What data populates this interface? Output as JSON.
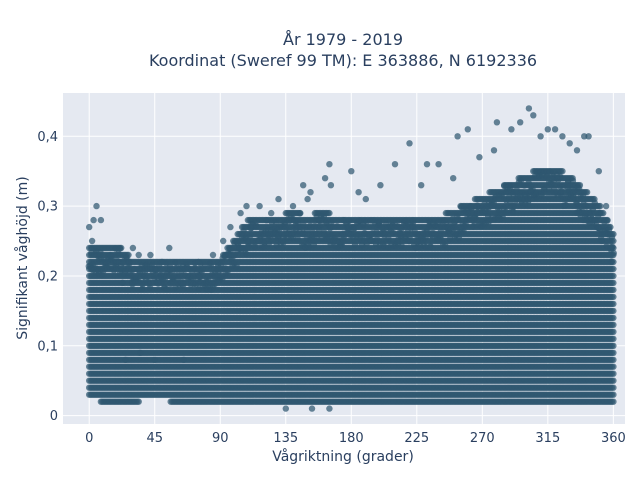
{
  "chart_data": {
    "type": "scatter",
    "title_line1": "År 1979 - 2019",
    "title_line2": "Koordinat (Sweref 99 TM): E 363886, N 6192336",
    "xlabel": "Vågriktning (grader)",
    "ylabel": "Signifikant våghöjd (m)",
    "xlim": [
      -18,
      368
    ],
    "ylim": [
      -0.012,
      0.462
    ],
    "xticks": [
      0,
      45,
      90,
      135,
      180,
      225,
      270,
      315,
      360
    ],
    "xtick_labels": [
      "0",
      "45",
      "90",
      "135",
      "180",
      "225",
      "270",
      "315",
      "360"
    ],
    "yticks": [
      0,
      0.1,
      0.2,
      0.3,
      0.4
    ],
    "ytick_labels": [
      "0",
      "0,1",
      "0,2",
      "0,3",
      "0,4"
    ],
    "grid": true,
    "marker_color": "#2f5770",
    "background_color": "#e5e9f1",
    "envelope": {
      "x": [
        -1,
        5,
        10,
        20,
        30,
        40,
        50,
        60,
        70,
        80,
        90,
        100,
        110,
        120,
        130,
        140,
        150,
        160,
        170,
        180,
        190,
        200,
        210,
        220,
        230,
        240,
        250,
        260,
        270,
        280,
        290,
        300,
        310,
        320,
        330,
        340,
        350,
        360
      ],
      "ymax": [
        0.24,
        0.24,
        0.24,
        0.24,
        0.22,
        0.22,
        0.22,
        0.22,
        0.22,
        0.22,
        0.22,
        0.25,
        0.28,
        0.28,
        0.28,
        0.29,
        0.28,
        0.29,
        0.28,
        0.28,
        0.28,
        0.28,
        0.28,
        0.28,
        0.28,
        0.28,
        0.29,
        0.3,
        0.31,
        0.32,
        0.33,
        0.34,
        0.35,
        0.35,
        0.34,
        0.32,
        0.3,
        0.26
      ],
      "ymin": [
        0.03,
        0.03,
        0.02,
        0.02,
        0.02,
        0.03,
        0.03,
        0.02,
        0.02,
        0.02,
        0.02,
        0.02,
        0.02,
        0.02,
        0.02,
        0.02,
        0.02,
        0.02,
        0.02,
        0.02,
        0.02,
        0.02,
        0.02,
        0.02,
        0.02,
        0.02,
        0.02,
        0.02,
        0.02,
        0.02,
        0.02,
        0.02,
        0.02,
        0.02,
        0.02,
        0.02,
        0.02,
        0.02
      ]
    },
    "outliers": [
      {
        "x": 0,
        "y": 0.27
      },
      {
        "x": 2,
        "y": 0.25
      },
      {
        "x": 3,
        "y": 0.28
      },
      {
        "x": 5,
        "y": 0.3
      },
      {
        "x": 8,
        "y": 0.28
      },
      {
        "x": 30,
        "y": 0.24
      },
      {
        "x": 34,
        "y": 0.23
      },
      {
        "x": 42,
        "y": 0.23
      },
      {
        "x": 50,
        "y": 0.22
      },
      {
        "x": 55,
        "y": 0.24
      },
      {
        "x": 75,
        "y": 0.22
      },
      {
        "x": 85,
        "y": 0.23
      },
      {
        "x": 92,
        "y": 0.25
      },
      {
        "x": 97,
        "y": 0.27
      },
      {
        "x": 104,
        "y": 0.29
      },
      {
        "x": 108,
        "y": 0.3
      },
      {
        "x": 117,
        "y": 0.3
      },
      {
        "x": 125,
        "y": 0.29
      },
      {
        "x": 130,
        "y": 0.31
      },
      {
        "x": 140,
        "y": 0.3
      },
      {
        "x": 147,
        "y": 0.33
      },
      {
        "x": 150,
        "y": 0.31
      },
      {
        "x": 152,
        "y": 0.32
      },
      {
        "x": 162,
        "y": 0.34
      },
      {
        "x": 165,
        "y": 0.36
      },
      {
        "x": 166,
        "y": 0.33
      },
      {
        "x": 180,
        "y": 0.35
      },
      {
        "x": 185,
        "y": 0.32
      },
      {
        "x": 190,
        "y": 0.31
      },
      {
        "x": 200,
        "y": 0.33
      },
      {
        "x": 210,
        "y": 0.36
      },
      {
        "x": 220,
        "y": 0.39
      },
      {
        "x": 228,
        "y": 0.33
      },
      {
        "x": 232,
        "y": 0.36
      },
      {
        "x": 240,
        "y": 0.36
      },
      {
        "x": 250,
        "y": 0.34
      },
      {
        "x": 253,
        "y": 0.4
      },
      {
        "x": 260,
        "y": 0.41
      },
      {
        "x": 268,
        "y": 0.37
      },
      {
        "x": 278,
        "y": 0.38
      },
      {
        "x": 280,
        "y": 0.42
      },
      {
        "x": 290,
        "y": 0.41
      },
      {
        "x": 296,
        "y": 0.42
      },
      {
        "x": 302,
        "y": 0.44
      },
      {
        "x": 305,
        "y": 0.43
      },
      {
        "x": 310,
        "y": 0.4
      },
      {
        "x": 315,
        "y": 0.41
      },
      {
        "x": 320,
        "y": 0.41
      },
      {
        "x": 325,
        "y": 0.4
      },
      {
        "x": 330,
        "y": 0.39
      },
      {
        "x": 335,
        "y": 0.38
      },
      {
        "x": 340,
        "y": 0.4
      },
      {
        "x": 343,
        "y": 0.4
      },
      {
        "x": 350,
        "y": 0.35
      },
      {
        "x": 355,
        "y": 0.3
      },
      {
        "x": 135,
        "y": 0.01
      },
      {
        "x": 153,
        "y": 0.01
      },
      {
        "x": 165,
        "y": 0.01
      },
      {
        "x": 25,
        "y": 0.08
      },
      {
        "x": 45,
        "y": 0.08
      },
      {
        "x": 65,
        "y": 0.08
      },
      {
        "x": 35,
        "y": 0.09
      }
    ]
  }
}
